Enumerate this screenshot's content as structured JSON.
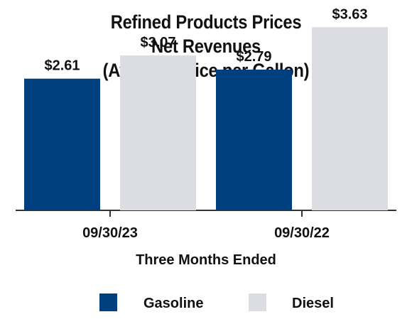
{
  "chart_data": {
    "type": "bar",
    "title": [
      "Refined Products Prices",
      "Net Revenues",
      "(Average Price per Gallon)"
    ],
    "xlabel": "Three Months Ended",
    "ylabel": "",
    "categories": [
      "09/30/23",
      "09/30/22"
    ],
    "series": [
      {
        "name": "Gasoline",
        "values": [
          2.61,
          2.79
        ],
        "labels": [
          "$2.61",
          "$2.79"
        ],
        "color": "#003f7f"
      },
      {
        "name": "Diesel",
        "values": [
          3.07,
          3.63
        ],
        "labels": [
          "$3.07",
          "$3.63"
        ],
        "color": "#dcdde2"
      }
    ],
    "ylim": [
      0,
      4.0
    ],
    "grid": false,
    "legend_position": "bottom"
  }
}
